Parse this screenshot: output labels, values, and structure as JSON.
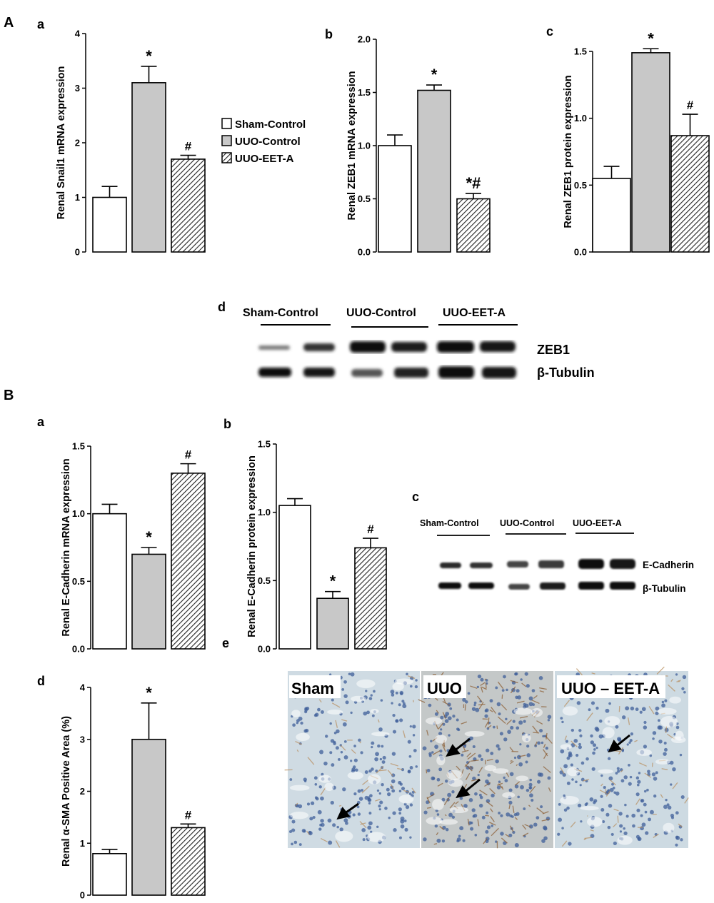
{
  "panel_labels": {
    "A": "A",
    "B": "B"
  },
  "legend": [
    {
      "label": "Sham-Control",
      "pattern": "white"
    },
    {
      "label": "UUO-Control",
      "pattern": "gray"
    },
    {
      "label": "UUO-EET-A",
      "pattern": "hatch"
    }
  ],
  "blot_A": {
    "letter": "d",
    "groups": [
      "Sham-Control",
      "UUO-Control",
      "UUO-EET-A"
    ],
    "bands": [
      "ZEB1",
      "β-Tubulin"
    ]
  },
  "blot_B": {
    "letter": "c",
    "groups": [
      "Sham-Control",
      "UUO-Control",
      "UUO-EET-A"
    ],
    "bands": [
      "E-Cadherin",
      "β-Tubulin"
    ]
  },
  "micrograph": {
    "letter": "e",
    "panels": [
      "Sham",
      "UUO",
      "UUO – EET-A"
    ]
  },
  "colors": {
    "white": "#ffffff",
    "gray": "#c8c8c8",
    "hatch": "#333333",
    "bg": "#ffffff"
  },
  "chart_data": [
    {
      "id": "Aa",
      "letter": "a",
      "type": "bar",
      "ylabel": "Renal Snail1 mRNA expression",
      "categories": [
        "Sham-Control",
        "UUO-Control",
        "UUO-EET-A"
      ],
      "values": [
        1.0,
        3.1,
        1.7
      ],
      "errors": [
        0.2,
        0.3,
        0.07
      ],
      "annotations": [
        "",
        "*",
        "#"
      ],
      "ylim": [
        0,
        4
      ],
      "yticks": [
        "0",
        "1",
        "2",
        "3",
        "4"
      ]
    },
    {
      "id": "Ab",
      "letter": "b",
      "type": "bar",
      "ylabel": "Renal ZEB1 mRNA expression",
      "categories": [
        "Sham-Control",
        "UUO-Control",
        "UUO-EET-A"
      ],
      "values": [
        1.0,
        1.52,
        0.5
      ],
      "errors": [
        0.1,
        0.05,
        0.05
      ],
      "annotations": [
        "",
        "*",
        "*#"
      ],
      "ylim": [
        0,
        2.0
      ],
      "yticks": [
        "0.0",
        "0.5",
        "1.0",
        "1.5",
        "2.0"
      ]
    },
    {
      "id": "Ac",
      "letter": "c",
      "type": "bar",
      "ylabel": "Renal ZEB1 protein expression",
      "categories": [
        "Sham-Control",
        "UUO-Control",
        "UUO-EET-A"
      ],
      "values": [
        0.55,
        1.49,
        0.87
      ],
      "errors": [
        0.09,
        0.03,
        0.16
      ],
      "annotations": [
        "",
        "*",
        "#"
      ],
      "ylim": [
        0,
        1.5
      ],
      "yticks": [
        "0.0",
        "0.5",
        "1.0",
        "1.5"
      ]
    },
    {
      "id": "Ba",
      "letter": "a",
      "type": "bar",
      "ylabel": "Renal E-Cadherin mRNA expression",
      "categories": [
        "Sham-Control",
        "UUO-Control",
        "UUO-EET-A"
      ],
      "values": [
        1.0,
        0.7,
        1.3
      ],
      "errors": [
        0.07,
        0.05,
        0.07
      ],
      "annotations": [
        "",
        "*",
        "#"
      ],
      "ylim": [
        0,
        1.5
      ],
      "yticks": [
        "0.0",
        "0.5",
        "1.0",
        "1.5"
      ]
    },
    {
      "id": "Bb",
      "letter": "b",
      "type": "bar",
      "ylabel": "Renal E-Cadherin protein expression",
      "categories": [
        "Sham-Control",
        "UUO-Control",
        "UUO-EET-A"
      ],
      "values": [
        1.05,
        0.37,
        0.74
      ],
      "errors": [
        0.05,
        0.05,
        0.07
      ],
      "annotations": [
        "",
        "*",
        "#"
      ],
      "ylim": [
        0,
        1.5
      ],
      "yticks": [
        "0.0",
        "0.5",
        "1.0",
        "1.5"
      ]
    },
    {
      "id": "Bd",
      "letter": "d",
      "type": "bar",
      "ylabel": "Renal α-SMA Positive Area (%)",
      "categories": [
        "Sham-Control",
        "UUO-Control",
        "UUO-EET-A"
      ],
      "values": [
        0.8,
        3.0,
        1.3
      ],
      "errors": [
        0.08,
        0.7,
        0.07
      ],
      "annotations": [
        "",
        "*",
        "#"
      ],
      "ylim": [
        0,
        4
      ],
      "yticks": [
        "0",
        "1",
        "2",
        "3",
        "4"
      ]
    }
  ]
}
